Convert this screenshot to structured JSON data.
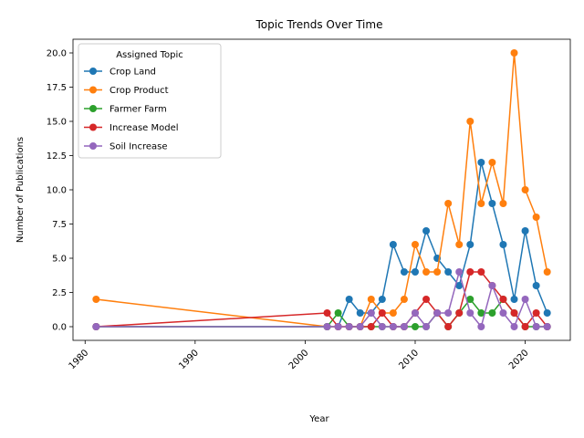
{
  "chart_data": {
    "type": "line",
    "title": "Topic Trends Over Time",
    "xlabel": "Year",
    "ylabel": "Number of Publications",
    "xlim": [
      1978.9,
      2024.1
    ],
    "ylim": [
      -1.0,
      21.0
    ],
    "x_ticks": [
      1980,
      1990,
      2000,
      2010,
      2020
    ],
    "y_ticks": [
      0.0,
      2.5,
      5.0,
      7.5,
      10.0,
      12.5,
      15.0,
      17.5,
      20.0
    ],
    "y_tick_labels": [
      "0.0",
      "2.5",
      "5.0",
      "7.5",
      "10.0",
      "12.5",
      "15.0",
      "17.5",
      "20.0"
    ],
    "grid": false,
    "legend": {
      "title": "Assigned Topic",
      "placement": "upper-left"
    },
    "x": [
      1981,
      2002,
      2003,
      2004,
      2005,
      2006,
      2007,
      2008,
      2009,
      2010,
      2011,
      2012,
      2013,
      2014,
      2015,
      2016,
      2017,
      2018,
      2019,
      2020,
      2021,
      2022
    ],
    "series": [
      {
        "name": "Crop Land",
        "color": "#1f77b4",
        "values": [
          0,
          0,
          0,
          2,
          1,
          1,
          2,
          6,
          4,
          4,
          7,
          5,
          4,
          3,
          6,
          12,
          9,
          6,
          2,
          7,
          3,
          1
        ]
      },
      {
        "name": "Crop Product",
        "color": "#ff7f0e",
        "values": [
          2,
          0,
          0,
          0,
          0,
          2,
          1,
          1,
          2,
          6,
          4,
          4,
          9,
          6,
          15,
          9,
          12,
          9,
          20,
          10,
          8,
          4
        ]
      },
      {
        "name": "Farmer Farm",
        "color": "#2ca02c",
        "values": [
          0,
          0,
          1,
          0,
          0,
          0,
          0,
          0,
          0,
          0,
          0,
          1,
          0,
          1,
          2,
          1,
          1,
          2,
          1,
          0,
          0,
          0
        ]
      },
      {
        "name": "Increase Model",
        "color": "#d62728",
        "values": [
          0,
          1,
          0,
          0,
          0,
          0,
          1,
          0,
          0,
          1,
          2,
          1,
          0,
          1,
          4,
          4,
          3,
          2,
          1,
          0,
          1,
          0
        ]
      },
      {
        "name": "Soil Increase",
        "color": "#9467bd",
        "values": [
          0,
          0,
          0,
          0,
          0,
          1,
          0,
          0,
          0,
          1,
          0,
          1,
          1,
          4,
          1,
          0,
          3,
          1,
          0,
          2,
          0,
          0
        ]
      }
    ]
  }
}
